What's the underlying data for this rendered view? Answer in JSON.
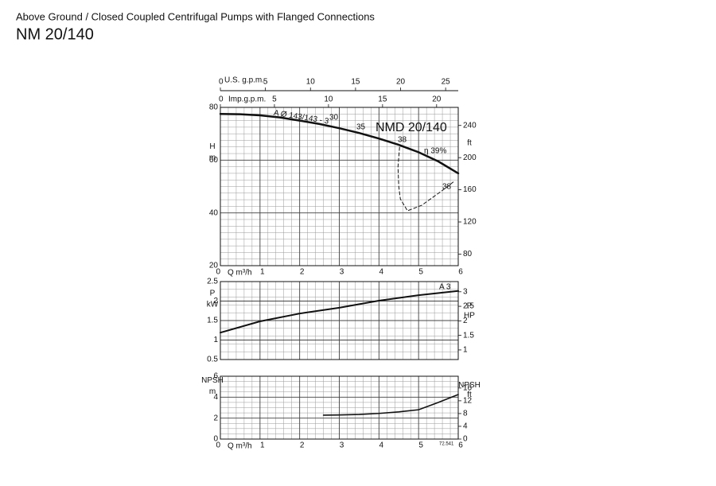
{
  "header": {
    "subtitle": "Above Ground / Closed Coupled Centrifugal Pumps with Flanged Connections",
    "title": "NM 20/140"
  },
  "chart_data": [
    {
      "type": "line",
      "title": "NMD 20/140",
      "xlabel": "Q m³/h",
      "xlim": [
        0,
        6
      ],
      "xticks": [
        0,
        1,
        2,
        3,
        4,
        5,
        6
      ],
      "show_xtick_labels": true,
      "ylim": [
        20,
        80
      ],
      "yticks": [
        20,
        40,
        60,
        80
      ],
      "ylabel": [
        "H",
        "m"
      ],
      "y2lim": [
        65.6,
        262.5
      ],
      "y2ticks": [
        80,
        120,
        160,
        200,
        240
      ],
      "y2label": [
        "ft"
      ],
      "minor_grid": {
        "x": 0.2,
        "y": 2.5
      },
      "top_axes": [
        {
          "label": "U.S. g.p.m.",
          "xlim": [
            0,
            26.4
          ],
          "xticks": [
            0,
            5,
            10,
            15,
            20,
            25
          ]
        },
        {
          "label": "Imp.g.p.m.",
          "xlim": [
            0,
            22
          ],
          "xticks": [
            0,
            5,
            10,
            15,
            20
          ]
        }
      ],
      "series": [
        {
          "name": "A Ø 143/143 - 3",
          "color": "#111111",
          "linestyle": "solid",
          "linewidth": 2.5,
          "x": [
            0,
            0.5,
            1,
            1.5,
            2,
            2.5,
            3,
            3.5,
            4,
            4.5,
            5,
            5.5,
            6
          ],
          "values": [
            77.5,
            77.4,
            77,
            76.2,
            75,
            73.7,
            72.1,
            70.3,
            68.2,
            65.8,
            63,
            59.5,
            55
          ]
        },
        {
          "name": "38",
          "color": "#111111",
          "linestyle": "dashed",
          "linewidth": 1,
          "x": [
            4.52,
            4.48,
            4.5,
            4.54,
            4.72,
            5.08,
            5.58,
            5.9
          ],
          "values": [
            64.9,
            57.4,
            50,
            45.3,
            40.8,
            42.9,
            48.3,
            52
          ]
        }
      ],
      "annotations": [
        "30",
        "35",
        "η 39%",
        "38"
      ]
    },
    {
      "type": "line",
      "xlim": [
        0,
        6
      ],
      "xticks": [
        0,
        1,
        2,
        3,
        4,
        5,
        6
      ],
      "show_xtick_labels": false,
      "ylim": [
        0.5,
        2.5
      ],
      "yticks": [
        0.5,
        1,
        1.5,
        2,
        2.5
      ],
      "ylabel": [
        "P",
        "kW"
      ],
      "y2lim": [
        0.67,
        3.35
      ],
      "y2ticks": [
        1,
        1.5,
        2,
        2.5,
        3
      ],
      "y2label": [
        "P",
        "HP"
      ],
      "minor_grid": {
        "x": 0.2,
        "y": 0.2
      },
      "series": [
        {
          "name": "A 3",
          "color": "#111111",
          "linestyle": "solid",
          "linewidth": 2,
          "x": [
            0,
            1,
            2,
            3,
            4,
            5,
            6
          ],
          "values": [
            1.19,
            1.48,
            1.68,
            1.83,
            2.01,
            2.15,
            2.26
          ]
        }
      ]
    },
    {
      "type": "line",
      "xlabel": "Q m³/h",
      "xlim": [
        0,
        6
      ],
      "xticks": [
        0,
        1,
        2,
        3,
        4,
        5,
        6
      ],
      "show_xtick_labels": true,
      "ylim": [
        0,
        6
      ],
      "yticks": [
        0,
        2,
        4,
        6
      ],
      "ylabel": [
        "NPSH",
        "m"
      ],
      "y2lim": [
        0,
        19.7
      ],
      "y2ticks": [
        0,
        4,
        8,
        12,
        16
      ],
      "y2label": [
        "NPSH",
        "ft"
      ],
      "minor_grid": {
        "x": 0.2,
        "y": 0.5
      },
      "series": [
        {
          "color": "#111111",
          "linestyle": "solid",
          "linewidth": 1.6,
          "x": [
            2.6,
            3,
            3.5,
            4,
            4.5,
            5,
            5.5,
            6
          ],
          "values": [
            2.28,
            2.3,
            2.35,
            2.45,
            2.6,
            2.8,
            3.5,
            4.25
          ]
        }
      ],
      "annotations": [
        "72.541"
      ]
    }
  ]
}
